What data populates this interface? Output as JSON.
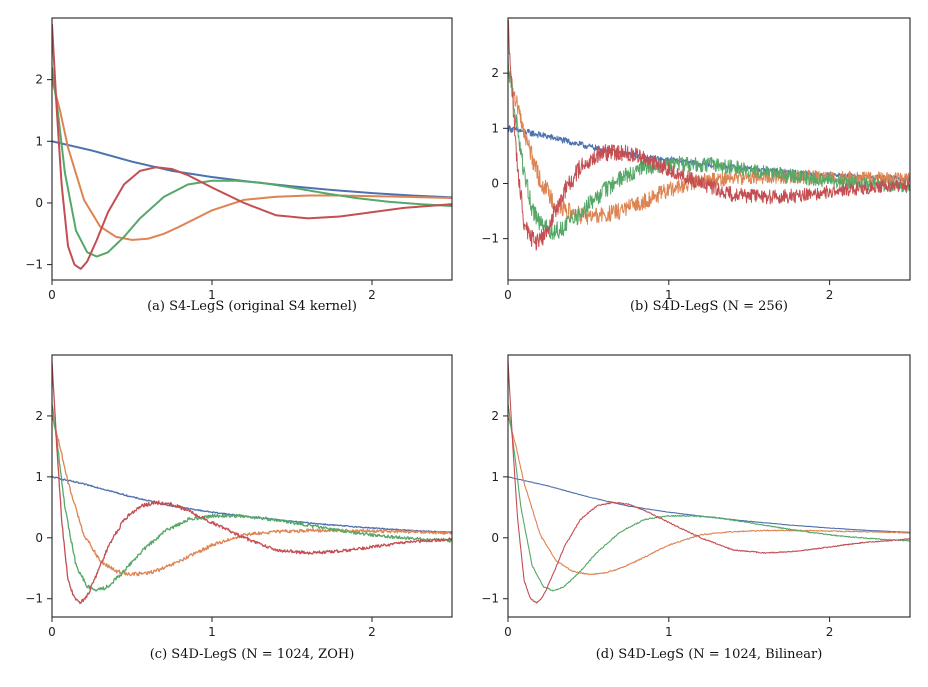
{
  "chart_data": [
    {
      "type": "line",
      "caption": "(a) S4-LegS (original S4 kernel)",
      "xlim": [
        0,
        2.5
      ],
      "ylim": [
        -1.25,
        3.0
      ],
      "xticks": [
        0,
        1,
        2
      ],
      "yticks": [
        -1,
        0,
        1,
        2
      ],
      "noise": 0,
      "thin": false,
      "grid": false,
      "series": [
        {
          "color": "#4C72B0",
          "x": [
            0,
            0.25,
            0.5,
            0.75,
            1.0,
            1.25,
            1.5,
            1.75,
            2.0,
            2.25,
            2.5
          ],
          "y": [
            1.0,
            0.85,
            0.67,
            0.52,
            0.42,
            0.34,
            0.27,
            0.21,
            0.16,
            0.12,
            0.09
          ]
        },
        {
          "color": "#DD8452",
          "x": [
            0,
            0.05,
            0.1,
            0.2,
            0.3,
            0.4,
            0.5,
            0.6,
            0.7,
            0.8,
            1.0,
            1.2,
            1.4,
            1.6,
            1.8,
            2.0,
            2.2,
            2.5
          ],
          "y": [
            2.0,
            1.5,
            0.9,
            0.05,
            -0.38,
            -0.55,
            -0.6,
            -0.58,
            -0.5,
            -0.38,
            -0.12,
            0.05,
            0.1,
            0.12,
            0.12,
            0.11,
            0.1,
            0.08
          ]
        },
        {
          "color": "#55A868",
          "x": [
            0,
            0.04,
            0.08,
            0.15,
            0.22,
            0.28,
            0.35,
            0.45,
            0.55,
            0.7,
            0.85,
            1.0,
            1.15,
            1.3,
            1.5,
            1.7,
            1.9,
            2.1,
            2.3,
            2.5
          ],
          "y": [
            2.2,
            1.4,
            0.5,
            -0.45,
            -0.8,
            -0.87,
            -0.8,
            -0.55,
            -0.25,
            0.1,
            0.3,
            0.36,
            0.36,
            0.33,
            0.25,
            0.16,
            0.08,
            0.02,
            -0.02,
            -0.05
          ]
        },
        {
          "color": "#C44E52",
          "x": [
            0,
            0.03,
            0.06,
            0.1,
            0.14,
            0.18,
            0.22,
            0.28,
            0.35,
            0.45,
            0.55,
            0.65,
            0.75,
            0.85,
            1.0,
            1.2,
            1.4,
            1.6,
            1.8,
            2.0,
            2.2,
            2.5
          ],
          "y": [
            2.9,
            1.5,
            0.3,
            -0.7,
            -1.0,
            -1.07,
            -0.95,
            -0.6,
            -0.15,
            0.3,
            0.52,
            0.58,
            0.55,
            0.45,
            0.25,
            0.0,
            -0.2,
            -0.25,
            -0.22,
            -0.15,
            -0.08,
            -0.02
          ]
        }
      ]
    },
    {
      "type": "line",
      "caption": "(b) S4D-LegS (N = 256)",
      "xlim": [
        0,
        2.5
      ],
      "ylim": [
        -1.75,
        3.0
      ],
      "xticks": [
        0,
        1,
        2
      ],
      "yticks": [
        -1,
        0,
        1,
        2
      ],
      "noise": 0.18,
      "thin": false,
      "grid": false,
      "series": [
        {
          "color": "#4C72B0",
          "x": [
            0,
            0.25,
            0.5,
            0.75,
            1.0,
            1.25,
            1.5,
            1.75,
            2.0,
            2.25,
            2.5
          ],
          "y": [
            1.0,
            0.85,
            0.67,
            0.52,
            0.42,
            0.34,
            0.27,
            0.21,
            0.16,
            0.12,
            0.09
          ]
        },
        {
          "color": "#DD8452",
          "x": [
            0,
            0.05,
            0.1,
            0.2,
            0.3,
            0.4,
            0.5,
            0.6,
            0.7,
            0.8,
            1.0,
            1.2,
            1.4,
            1.6,
            1.8,
            2.0,
            2.2,
            2.5
          ],
          "y": [
            2.0,
            1.5,
            0.9,
            0.05,
            -0.38,
            -0.55,
            -0.6,
            -0.58,
            -0.5,
            -0.38,
            -0.12,
            0.05,
            0.1,
            0.12,
            0.12,
            0.11,
            0.1,
            0.08
          ]
        },
        {
          "color": "#55A868",
          "x": [
            0,
            0.04,
            0.08,
            0.15,
            0.22,
            0.28,
            0.35,
            0.45,
            0.55,
            0.7,
            0.85,
            1.0,
            1.15,
            1.3,
            1.5,
            1.7,
            1.9,
            2.1,
            2.3,
            2.5
          ],
          "y": [
            2.2,
            1.4,
            0.5,
            -0.45,
            -0.8,
            -0.87,
            -0.8,
            -0.55,
            -0.25,
            0.1,
            0.3,
            0.36,
            0.36,
            0.33,
            0.25,
            0.16,
            0.08,
            0.02,
            -0.02,
            -0.05
          ]
        },
        {
          "color": "#C44E52",
          "x": [
            0,
            0.03,
            0.06,
            0.1,
            0.14,
            0.18,
            0.22,
            0.28,
            0.35,
            0.45,
            0.55,
            0.65,
            0.75,
            0.85,
            1.0,
            1.2,
            1.4,
            1.6,
            1.8,
            2.0,
            2.2,
            2.5
          ],
          "y": [
            2.9,
            1.5,
            0.3,
            -0.7,
            -1.0,
            -1.07,
            -0.95,
            -0.6,
            -0.15,
            0.3,
            0.52,
            0.58,
            0.55,
            0.45,
            0.25,
            0.0,
            -0.2,
            -0.25,
            -0.22,
            -0.15,
            -0.08,
            -0.02
          ]
        }
      ]
    },
    {
      "type": "line",
      "caption": "(c) S4D-LegS (N = 1024, ZOH)",
      "xlim": [
        0,
        2.5
      ],
      "ylim": [
        -1.3,
        3.0
      ],
      "xticks": [
        0,
        1,
        2
      ],
      "yticks": [
        -1,
        0,
        1,
        2
      ],
      "noise": 0.035,
      "thin": false,
      "grid": false,
      "series": [
        {
          "color": "#4C72B0",
          "x": [
            0,
            0.25,
            0.5,
            0.75,
            1.0,
            1.25,
            1.5,
            1.75,
            2.0,
            2.25,
            2.5
          ],
          "y": [
            1.0,
            0.85,
            0.67,
            0.52,
            0.42,
            0.34,
            0.27,
            0.21,
            0.16,
            0.12,
            0.09
          ]
        },
        {
          "color": "#DD8452",
          "x": [
            0,
            0.05,
            0.1,
            0.2,
            0.3,
            0.4,
            0.5,
            0.6,
            0.7,
            0.8,
            1.0,
            1.2,
            1.4,
            1.6,
            1.8,
            2.0,
            2.2,
            2.5
          ],
          "y": [
            2.0,
            1.5,
            0.9,
            0.05,
            -0.38,
            -0.55,
            -0.6,
            -0.58,
            -0.5,
            -0.38,
            -0.12,
            0.05,
            0.1,
            0.12,
            0.12,
            0.11,
            0.1,
            0.08
          ]
        },
        {
          "color": "#55A868",
          "x": [
            0,
            0.04,
            0.08,
            0.15,
            0.22,
            0.28,
            0.35,
            0.45,
            0.55,
            0.7,
            0.85,
            1.0,
            1.15,
            1.3,
            1.5,
            1.7,
            1.9,
            2.1,
            2.3,
            2.5
          ],
          "y": [
            2.2,
            1.4,
            0.5,
            -0.45,
            -0.8,
            -0.87,
            -0.8,
            -0.55,
            -0.25,
            0.1,
            0.3,
            0.36,
            0.36,
            0.33,
            0.25,
            0.16,
            0.08,
            0.02,
            -0.02,
            -0.05
          ]
        },
        {
          "color": "#C44E52",
          "x": [
            0,
            0.03,
            0.06,
            0.1,
            0.14,
            0.18,
            0.22,
            0.28,
            0.35,
            0.45,
            0.55,
            0.65,
            0.75,
            0.85,
            1.0,
            1.2,
            1.4,
            1.6,
            1.8,
            2.0,
            2.2,
            2.5
          ],
          "y": [
            2.9,
            1.5,
            0.3,
            -0.7,
            -1.0,
            -1.07,
            -0.95,
            -0.6,
            -0.15,
            0.3,
            0.52,
            0.58,
            0.55,
            0.45,
            0.25,
            0.0,
            -0.2,
            -0.25,
            -0.22,
            -0.15,
            -0.08,
            -0.02
          ]
        }
      ]
    },
    {
      "type": "line",
      "caption": "(d) S4D-LegS (N = 1024, Bilinear)",
      "xlim": [
        0,
        2.5
      ],
      "ylim": [
        -1.3,
        3.0
      ],
      "xticks": [
        0,
        1,
        2
      ],
      "yticks": [
        -1,
        0,
        1,
        2
      ],
      "noise": 0.012,
      "thin": true,
      "grid": false,
      "series": [
        {
          "color": "#4C72B0",
          "x": [
            0,
            0.25,
            0.5,
            0.75,
            1.0,
            1.25,
            1.5,
            1.75,
            2.0,
            2.25,
            2.5
          ],
          "y": [
            1.0,
            0.85,
            0.67,
            0.52,
            0.42,
            0.34,
            0.27,
            0.21,
            0.16,
            0.12,
            0.09
          ]
        },
        {
          "color": "#DD8452",
          "x": [
            0,
            0.05,
            0.1,
            0.2,
            0.3,
            0.4,
            0.5,
            0.6,
            0.7,
            0.8,
            1.0,
            1.2,
            1.4,
            1.6,
            1.8,
            2.0,
            2.2,
            2.5
          ],
          "y": [
            2.0,
            1.5,
            0.9,
            0.05,
            -0.38,
            -0.55,
            -0.6,
            -0.58,
            -0.5,
            -0.38,
            -0.12,
            0.05,
            0.1,
            0.12,
            0.12,
            0.11,
            0.1,
            0.08
          ]
        },
        {
          "color": "#55A868",
          "x": [
            0,
            0.04,
            0.08,
            0.15,
            0.22,
            0.28,
            0.35,
            0.45,
            0.55,
            0.7,
            0.85,
            1.0,
            1.15,
            1.3,
            1.5,
            1.7,
            1.9,
            2.1,
            2.3,
            2.5
          ],
          "y": [
            2.2,
            1.4,
            0.5,
            -0.45,
            -0.8,
            -0.87,
            -0.8,
            -0.55,
            -0.25,
            0.1,
            0.3,
            0.36,
            0.36,
            0.33,
            0.25,
            0.16,
            0.08,
            0.02,
            -0.02,
            -0.05
          ]
        },
        {
          "color": "#C44E52",
          "x": [
            0,
            0.03,
            0.06,
            0.1,
            0.14,
            0.18,
            0.22,
            0.28,
            0.35,
            0.45,
            0.55,
            0.65,
            0.75,
            0.85,
            1.0,
            1.2,
            1.4,
            1.6,
            1.8,
            2.0,
            2.2,
            2.5
          ],
          "y": [
            2.9,
            1.5,
            0.3,
            -0.7,
            -1.0,
            -1.07,
            -0.95,
            -0.6,
            -0.15,
            0.3,
            0.52,
            0.58,
            0.55,
            0.45,
            0.25,
            0.0,
            -0.2,
            -0.25,
            -0.22,
            -0.15,
            -0.08,
            -0.02
          ]
        }
      ]
    }
  ]
}
